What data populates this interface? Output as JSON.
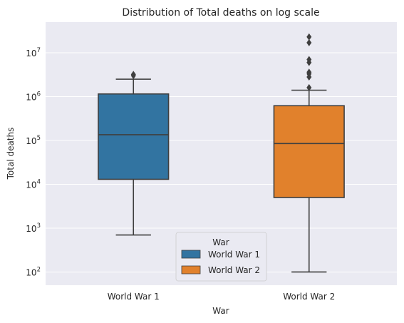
{
  "chart_data": {
    "type": "box",
    "title": "Distribution of Total deaths on log scale",
    "xlabel": "War",
    "ylabel": "Total deaths",
    "yscale": "log",
    "ylim": [
      50,
      50000000
    ],
    "yticks": [
      {
        "value": 100,
        "base": "10",
        "exp": "2"
      },
      {
        "value": 1000,
        "base": "10",
        "exp": "3"
      },
      {
        "value": 10000,
        "base": "10",
        "exp": "4"
      },
      {
        "value": 100000,
        "base": "10",
        "exp": "5"
      },
      {
        "value": 1000000,
        "base": "10",
        "exp": "6"
      },
      {
        "value": 10000000,
        "base": "10",
        "exp": "7"
      }
    ],
    "grid": true,
    "categories": [
      "World War 1",
      "World War 2"
    ],
    "series": [
      {
        "name": "World War 1",
        "color": "#3274a1",
        "whisker_low": 700,
        "q1": 13000,
        "median": 135000,
        "q3": 1150000,
        "whisker_high": 2500000,
        "outliers": [
          3000000,
          3200000
        ]
      },
      {
        "name": "World War 2",
        "color": "#e1812c",
        "whisker_low": 100,
        "q1": 5000,
        "median": 85000,
        "q3": 620000,
        "whisker_high": 1400000,
        "outliers": [
          1600000,
          2800000,
          3300000,
          3600000,
          6000000,
          7000000,
          17000000,
          23000000
        ]
      }
    ],
    "legend": {
      "title": "War",
      "placement": "lower-center",
      "entries": [
        "World War 1",
        "World War 2"
      ]
    }
  }
}
